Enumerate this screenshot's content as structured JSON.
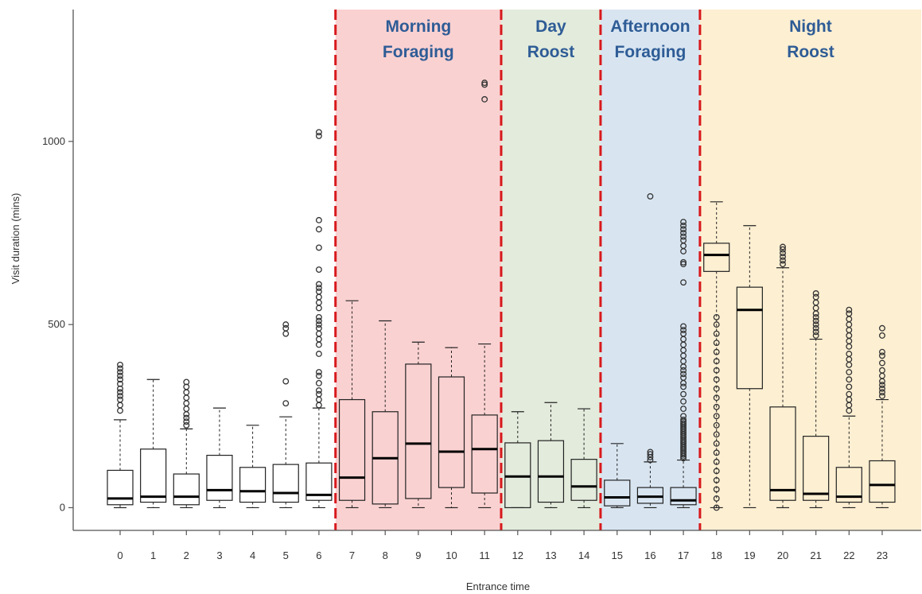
{
  "chart_data": {
    "type": "boxplot",
    "xlabel": "Entrance time",
    "ylabel": "Visit duration (mins)",
    "ylim": [
      -62,
      1360
    ],
    "y_ticks": [
      0,
      500,
      1000
    ],
    "x_ticks": [
      0,
      1,
      2,
      3,
      4,
      5,
      6,
      7,
      8,
      9,
      10,
      11,
      12,
      13,
      14,
      15,
      16,
      17,
      18,
      19,
      20,
      21,
      22,
      23
    ],
    "periods": [
      {
        "lines": [
          "Morning",
          "Foraging"
        ],
        "start": 6.5,
        "end": 11.5,
        "color": "#fad1d1",
        "label_color": "#2e5c96"
      },
      {
        "lines": [
          "Day",
          "Roost"
        ],
        "start": 11.5,
        "end": 14.5,
        "color": "#e3ebdc",
        "label_color": "#2e5c96"
      },
      {
        "lines": [
          "Afternoon",
          "Foraging"
        ],
        "start": 14.5,
        "end": 17.5,
        "color": "#d8e5f1",
        "label_color": "#2e5c96"
      },
      {
        "lines": [
          "Night",
          "Roost"
        ],
        "start": 17.5,
        "end": 23.8,
        "color": "#fdefd2",
        "label_color": "#2e5c96"
      }
    ],
    "boxes": [
      {
        "x": 0,
        "min": 0,
        "q1": 8,
        "median": 25,
        "q3": 102,
        "max": 240,
        "outliers": [
          265,
          280,
          295,
          305,
          315,
          325,
          338,
          350,
          360,
          370,
          380,
          390
        ]
      },
      {
        "x": 1,
        "min": 0,
        "q1": 15,
        "median": 30,
        "q3": 160,
        "max": 350,
        "outliers": []
      },
      {
        "x": 2,
        "min": 0,
        "q1": 8,
        "median": 30,
        "q3": 92,
        "max": 215,
        "outliers": [
          225,
          235,
          245,
          255,
          270,
          285,
          300,
          315,
          330,
          343
        ]
      },
      {
        "x": 3,
        "min": 0,
        "q1": 20,
        "median": 48,
        "q3": 143,
        "max": 272,
        "outliers": []
      },
      {
        "x": 4,
        "min": 0,
        "q1": 15,
        "median": 45,
        "q3": 110,
        "max": 225,
        "outliers": []
      },
      {
        "x": 5,
        "min": 0,
        "q1": 15,
        "median": 40,
        "q3": 118,
        "max": 248,
        "outliers": [
          285,
          345,
          475,
          490,
          500
        ]
      },
      {
        "x": 6,
        "min": 0,
        "q1": 20,
        "median": 35,
        "q3": 122,
        "max": 272,
        "outliers": [
          280,
          295,
          310,
          320,
          340,
          360,
          370,
          420,
          445,
          460,
          475,
          490,
          500,
          510,
          520,
          545,
          560,
          575,
          590,
          600,
          610,
          650,
          710,
          760,
          785,
          1015,
          1025
        ]
      },
      {
        "x": 7,
        "min": 0,
        "q1": 20,
        "median": 82,
        "q3": 295,
        "max": 565,
        "outliers": []
      },
      {
        "x": 8,
        "min": 0,
        "q1": 10,
        "median": 135,
        "q3": 262,
        "max": 510,
        "outliers": []
      },
      {
        "x": 9,
        "min": 0,
        "q1": 25,
        "median": 175,
        "q3": 392,
        "max": 452,
        "outliers": []
      },
      {
        "x": 10,
        "min": 0,
        "q1": 55,
        "median": 153,
        "q3": 357,
        "max": 437,
        "outliers": []
      },
      {
        "x": 11,
        "min": 0,
        "q1": 40,
        "median": 160,
        "q3": 253,
        "max": 447,
        "outliers": [
          1115,
          1155,
          1160
        ]
      },
      {
        "x": 12,
        "min": 0,
        "q1": 0,
        "median": 85,
        "q3": 177,
        "max": 262,
        "outliers": []
      },
      {
        "x": 13,
        "min": 0,
        "q1": 15,
        "median": 85,
        "q3": 183,
        "max": 287,
        "outliers": []
      },
      {
        "x": 14,
        "min": 0,
        "q1": 20,
        "median": 58,
        "q3": 132,
        "max": 270,
        "outliers": []
      },
      {
        "x": 15,
        "min": 0,
        "q1": 5,
        "median": 28,
        "q3": 75,
        "max": 175,
        "outliers": []
      },
      {
        "x": 16,
        "min": 0,
        "q1": 12,
        "median": 30,
        "q3": 55,
        "max": 125,
        "outliers": [
          130,
          138,
          146,
          152,
          850
        ]
      },
      {
        "x": 17,
        "min": 0,
        "q1": 8,
        "median": 20,
        "q3": 55,
        "max": 130,
        "outliers": [
          135,
          140,
          145,
          150,
          155,
          160,
          165,
          170,
          175,
          180,
          185,
          190,
          195,
          200,
          205,
          210,
          215,
          220,
          225,
          230,
          235,
          240,
          250,
          270,
          290,
          310,
          330,
          340,
          355,
          365,
          375,
          385,
          400,
          415,
          430,
          445,
          460,
          475,
          485,
          495,
          615,
          665,
          670,
          700,
          715,
          730,
          740,
          750,
          760,
          770,
          780
        ]
      },
      {
        "x": 18,
        "min": 0,
        "q1": 645,
        "median": 690,
        "q3": 722,
        "max": 835,
        "outliers": [
          0,
          25,
          50,
          75,
          100,
          125,
          150,
          175,
          200,
          225,
          250,
          275,
          300,
          325,
          350,
          375,
          400,
          425,
          450,
          475,
          500,
          520
        ]
      },
      {
        "x": 19,
        "min": 0,
        "q1": 325,
        "median": 540,
        "q3": 602,
        "max": 770,
        "outliers": []
      },
      {
        "x": 20,
        "min": 0,
        "q1": 20,
        "median": 48,
        "q3": 275,
        "max": 655,
        "outliers": [
          665,
          675,
          685,
          695,
          705,
          712
        ]
      },
      {
        "x": 21,
        "min": 0,
        "q1": 20,
        "median": 38,
        "q3": 195,
        "max": 460,
        "outliers": [
          470,
          480,
          490,
          500,
          510,
          520,
          530,
          545,
          560,
          575,
          585
        ]
      },
      {
        "x": 22,
        "min": 0,
        "q1": 15,
        "median": 30,
        "q3": 110,
        "max": 250,
        "outliers": [
          265,
          280,
          295,
          310,
          330,
          350,
          370,
          390,
          405,
          420,
          440,
          455,
          470,
          485,
          500,
          515,
          530,
          540
        ]
      },
      {
        "x": 23,
        "min": 0,
        "q1": 15,
        "median": 62,
        "q3": 128,
        "max": 295,
        "outliers": [
          305,
          315,
          325,
          335,
          345,
          360,
          375,
          395,
          415,
          425,
          470,
          490
        ]
      }
    ]
  }
}
